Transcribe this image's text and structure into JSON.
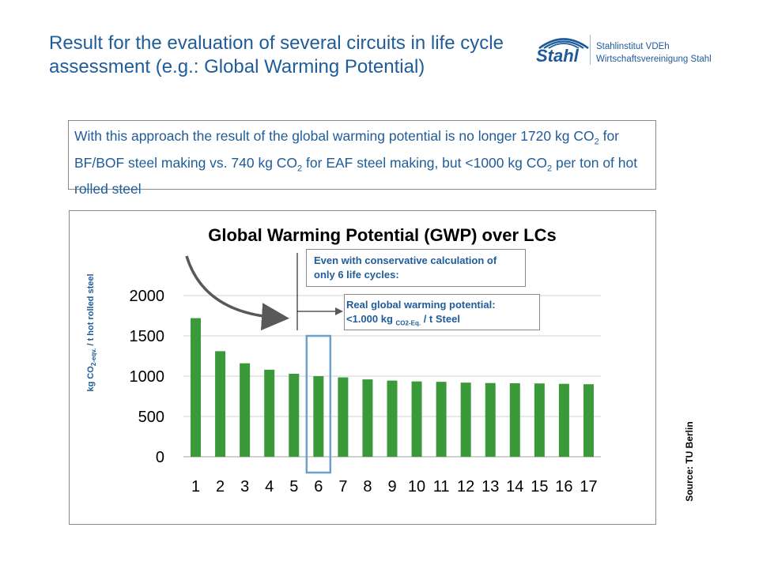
{
  "slide": {
    "title": "Result for the evaluation of several circuits in life cycle assessment (e.g.: Global Warming Potential)",
    "logo": {
      "word": "Stahl",
      "line1": "Stahlinstitut VDEh",
      "line2": "Wirtschaftsvereinigung Stahl"
    },
    "note": {
      "part1": "With this approach the result of the global warming potential is no longer 1720 kg CO",
      "sub1": "2",
      "part2": " for BF/BOF steel making vs. 740 kg CO",
      "sub2": "2",
      "part3": " for EAF steel making, but <1000 kg CO",
      "sub3": "2",
      "part4": " per ton of hot rolled steel"
    },
    "source": "Source: TU Berlin",
    "annotation1": "Even with conservative calculation of only 6 life cycles:",
    "annotation2": {
      "line1": "Real global warming potential:",
      "line2_a": "<1.000 kg ",
      "line2_sub": "CO2-Eq.",
      "line2_b": " / t Steel"
    },
    "ylabel": {
      "a": "kg CO",
      "sub": "2-eqv.",
      "b": "  /  t hot rolled steel"
    },
    "colors": {
      "text_blue": "#1f5c99",
      "bar_green": "#3a9a3a",
      "highlight": "#6fa0c9",
      "grid": "#d0d0d0"
    }
  },
  "chart_data": {
    "type": "bar",
    "title": "Global Warming Potential (GWP)  over LCs",
    "categories": [
      "1",
      "2",
      "3",
      "4",
      "5",
      "6",
      "7",
      "8",
      "9",
      "10",
      "11",
      "12",
      "13",
      "14",
      "15",
      "16",
      "17"
    ],
    "values": [
      1720,
      1310,
      1160,
      1080,
      1030,
      1000,
      985,
      960,
      945,
      935,
      930,
      920,
      915,
      912,
      910,
      905,
      900
    ],
    "ylim": [
      0,
      2000
    ],
    "yticks": [
      0,
      500,
      1000,
      1500,
      2000
    ],
    "grid": true,
    "highlight_category": "6"
  }
}
